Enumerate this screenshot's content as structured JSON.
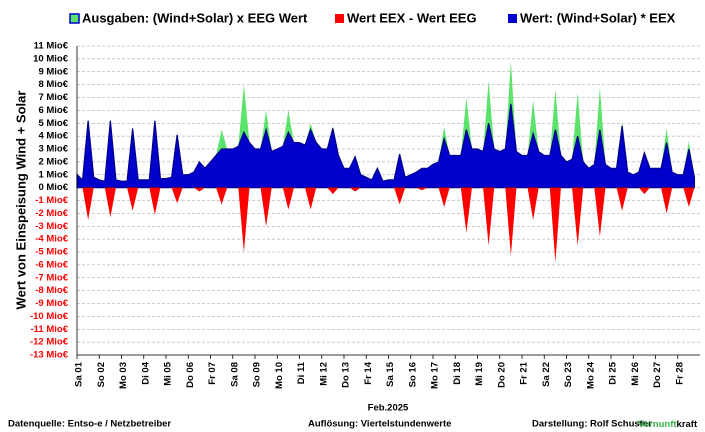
{
  "chart_data": {
    "type": "area",
    "y_axis_title": "Wert von Einspeisung Wind + Solar",
    "x_axis_title": "Feb.2025",
    "categories": [
      "Sa 01",
      null,
      null,
      null,
      "So 02",
      null,
      null,
      null,
      "Mo 03",
      null,
      null,
      null,
      "Di 04",
      null,
      null,
      null,
      "Mi 05",
      null,
      null,
      null,
      "Do 06",
      null,
      null,
      null,
      "Fr 07",
      null,
      null,
      null,
      "Sa 08",
      null,
      null,
      null,
      "So 09",
      null,
      null,
      null,
      "Mo 10",
      null,
      null,
      null,
      "Di 11",
      null,
      null,
      null,
      "Mi 12",
      null,
      null,
      null,
      "Do 13",
      null,
      null,
      null,
      "Fr 14",
      null,
      null,
      null,
      "Sa 15",
      null,
      null,
      null,
      "So 16",
      null,
      null,
      null,
      "Mo 17",
      null,
      null,
      null,
      "Di 18",
      null,
      null,
      null,
      "Mi 19",
      null,
      null,
      null,
      "Do 20",
      null,
      null,
      null,
      "Fr 21",
      null,
      null,
      null,
      "Sa 22",
      null,
      null,
      null,
      "So 23",
      null,
      null,
      null,
      "Mo 24",
      null,
      null,
      null,
      "Di 25",
      null,
      null,
      null,
      "Mi 26",
      null,
      null,
      null,
      "Do 27",
      null,
      null,
      null,
      "Fr 28",
      null,
      null,
      null
    ],
    "series": [
      {
        "name": "Ausgaben: (Wind+Solar) x EEG Wert",
        "color": "#5be36b",
        "values": [
          1.0,
          0.6,
          5.3,
          0.8,
          0.6,
          0.5,
          5.3,
          0.6,
          0.5,
          0.5,
          4.7,
          0.6,
          0.6,
          0.6,
          5.3,
          0.7,
          0.7,
          0.8,
          4.2,
          1.0,
          1.0,
          1.2,
          2.0,
          1.5,
          2.0,
          2.5,
          4.5,
          3.0,
          3.0,
          3.2,
          8.0,
          3.5,
          3.0,
          3.0,
          6.0,
          2.8,
          3.0,
          3.2,
          6.0,
          3.5,
          3.5,
          3.3,
          5.0,
          3.5,
          3.0,
          3.0,
          4.8,
          2.5,
          1.5,
          1.5,
          2.5,
          1.0,
          0.8,
          0.6,
          1.5,
          0.5,
          0.6,
          0.6,
          2.7,
          0.8,
          1.0,
          1.2,
          1.5,
          1.5,
          1.8,
          2.0,
          4.7,
          2.5,
          2.5,
          2.5,
          7.0,
          3.0,
          3.0,
          2.8,
          8.3,
          3.0,
          2.8,
          3.0,
          9.8,
          2.8,
          2.5,
          2.5,
          6.8,
          2.8,
          2.5,
          2.5,
          7.6,
          2.5,
          2.0,
          2.2,
          7.4,
          2.0,
          1.5,
          1.8,
          7.8,
          1.8,
          1.5,
          1.5,
          5.1,
          1.2,
          1.0,
          1.2,
          2.8,
          1.5,
          1.5,
          1.5,
          4.6,
          1.2,
          1.0,
          1.0,
          3.6,
          0.8
        ]
      },
      {
        "name": "Wert EEX - Wert EEG",
        "color": "#ff0000",
        "values": [
          0,
          0,
          -2.5,
          0,
          0,
          0,
          -2.3,
          0,
          0,
          0,
          -1.8,
          0,
          0,
          0,
          -2.1,
          0,
          0,
          0,
          -1.2,
          0,
          0,
          0,
          -0.3,
          0,
          0,
          0,
          -1.3,
          0,
          0,
          0,
          -5.0,
          0,
          0,
          0,
          -3.0,
          0,
          0,
          0,
          -1.7,
          0,
          0,
          0,
          -1.7,
          0,
          0,
          0,
          -0.5,
          0,
          0,
          0,
          -0.3,
          0,
          0,
          0,
          0,
          0,
          0,
          0,
          -1.3,
          0,
          0,
          0,
          -0.2,
          0,
          0,
          0,
          -1.5,
          0,
          0,
          0,
          -3.5,
          0,
          0,
          0,
          -4.5,
          0,
          0,
          0,
          -5.3,
          0,
          0,
          0,
          -2.5,
          0,
          0,
          0,
          -5.8,
          0,
          0,
          0,
          -4.5,
          0,
          0,
          0,
          -3.8,
          0,
          0,
          0,
          -1.8,
          0,
          0,
          0,
          -0.5,
          0,
          0,
          0,
          -2.0,
          0,
          0,
          0,
          -1.5,
          0
        ]
      },
      {
        "name": "Wert: (Wind+Solar) * EEX",
        "color": "#0000cc",
        "values": [
          1.0,
          0.6,
          5.2,
          0.8,
          0.6,
          0.5,
          5.2,
          0.6,
          0.5,
          0.5,
          4.6,
          0.6,
          0.6,
          0.6,
          5.2,
          0.7,
          0.7,
          0.8,
          4.1,
          1.0,
          1.0,
          1.2,
          2.0,
          1.5,
          2.0,
          2.5,
          3.0,
          3.0,
          3.0,
          3.2,
          4.3,
          3.5,
          3.0,
          3.0,
          4.5,
          2.8,
          3.0,
          3.2,
          4.3,
          3.5,
          3.5,
          3.3,
          4.5,
          3.5,
          3.0,
          3.0,
          4.6,
          2.5,
          1.5,
          1.5,
          2.4,
          1.0,
          0.8,
          0.6,
          1.5,
          0.5,
          0.6,
          0.6,
          2.6,
          0.8,
          1.0,
          1.2,
          1.5,
          1.5,
          1.8,
          2.0,
          3.8,
          2.5,
          2.5,
          2.5,
          4.5,
          3.0,
          3.0,
          2.8,
          5.0,
          3.0,
          2.8,
          3.0,
          6.5,
          2.8,
          2.5,
          2.5,
          4.2,
          2.8,
          2.5,
          2.5,
          4.5,
          2.5,
          2.0,
          2.2,
          4.0,
          2.0,
          1.5,
          1.8,
          4.5,
          1.8,
          1.5,
          1.5,
          4.8,
          1.2,
          1.0,
          1.2,
          2.7,
          1.5,
          1.5,
          1.5,
          3.5,
          1.2,
          1.0,
          1.0,
          3.0,
          0.8
        ]
      }
    ],
    "ylim": [
      -13,
      11
    ],
    "yticks": [
      {
        "value": 11,
        "label": "11 Mio€"
      },
      {
        "value": 10,
        "label": "10 Mio€"
      },
      {
        "value": 9,
        "label": "9 Mio€"
      },
      {
        "value": 8,
        "label": "8 Mio€"
      },
      {
        "value": 7,
        "label": "7 Mio€"
      },
      {
        "value": 6,
        "label": "6 Mio€"
      },
      {
        "value": 5,
        "label": "5 Mio€"
      },
      {
        "value": 4,
        "label": "4 Mio€"
      },
      {
        "value": 3,
        "label": "3 Mio€"
      },
      {
        "value": 2,
        "label": "2 Mio€"
      },
      {
        "value": 1,
        "label": "1 Mio€"
      },
      {
        "value": 0,
        "label": "0 Mio€"
      },
      {
        "value": -1,
        "label": "-1 Mio€"
      },
      {
        "value": -2,
        "label": "-2 Mio€"
      },
      {
        "value": -3,
        "label": "-3 Mio€"
      },
      {
        "value": -4,
        "label": "-4 Mio€"
      },
      {
        "value": -5,
        "label": "-5 Mio€"
      },
      {
        "value": -6,
        "label": "-6 Mio€"
      },
      {
        "value": -7,
        "label": "-7 Mio€"
      },
      {
        "value": -8,
        "label": "-8 Mio€"
      },
      {
        "value": -9,
        "label": "-9 Mio€"
      },
      {
        "value": -10,
        "label": "-10 Mio€"
      },
      {
        "value": -11,
        "label": "-11 Mio€"
      },
      {
        "value": -12,
        "label": "-12 Mio€"
      },
      {
        "value": -13,
        "label": "-13 Mio€"
      }
    ],
    "grid": true,
    "negative_tick_color": "#ff0000",
    "legend": "top",
    "footer": {
      "source": "Datenquelle: Entso-e  / Netzbetreiber",
      "resolution": "Auflösung: Viertelstundenwerte",
      "author": "Darstellung:  Rolf Schuster",
      "brand_1": "Vernunft",
      "brand_2": "kraft"
    }
  }
}
